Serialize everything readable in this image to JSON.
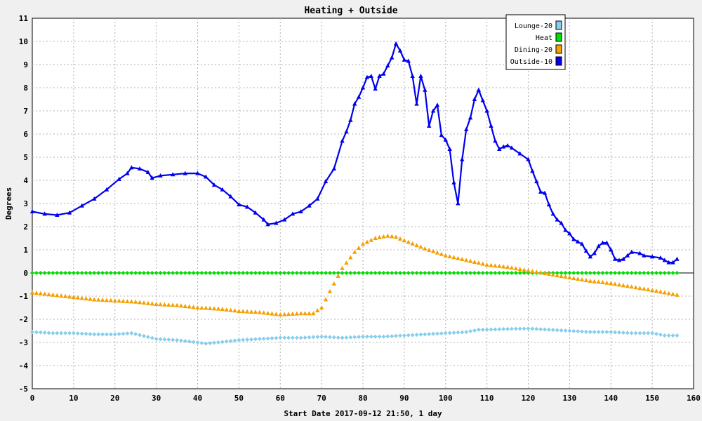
{
  "chart_data": {
    "type": "line",
    "title": "Heating + Outside",
    "xlabel": "Start Date 2017-09-12 21:50, 1 day",
    "ylabel": "Degrees",
    "xlim": [
      0,
      160
    ],
    "ylim": [
      -5,
      11
    ],
    "x_ticks": [
      0,
      10,
      20,
      30,
      40,
      50,
      60,
      70,
      80,
      90,
      100,
      110,
      120,
      130,
      140,
      150,
      160
    ],
    "y_ticks": [
      -5,
      -4,
      -3,
      -2,
      -1,
      0,
      1,
      2,
      3,
      4,
      5,
      6,
      7,
      8,
      9,
      10,
      11
    ],
    "grid": true,
    "legend_position": "top-right",
    "series": [
      {
        "name": "Lounge-20",
        "color": "#87ceeb",
        "marker": "diamond",
        "line": false,
        "points": [
          [
            0,
            -2.55
          ],
          [
            5,
            -2.6
          ],
          [
            10,
            -2.6
          ],
          [
            15,
            -2.65
          ],
          [
            20,
            -2.65
          ],
          [
            24,
            -2.6
          ],
          [
            30,
            -2.85
          ],
          [
            35,
            -2.9
          ],
          [
            40,
            -3.0
          ],
          [
            42,
            -3.05
          ],
          [
            45,
            -3.0
          ],
          [
            50,
            -2.9
          ],
          [
            55,
            -2.85
          ],
          [
            60,
            -2.8
          ],
          [
            65,
            -2.8
          ],
          [
            70,
            -2.75
          ],
          [
            75,
            -2.8
          ],
          [
            80,
            -2.75
          ],
          [
            85,
            -2.75
          ],
          [
            90,
            -2.7
          ],
          [
            95,
            -2.65
          ],
          [
            100,
            -2.6
          ],
          [
            105,
            -2.55
          ],
          [
            108,
            -2.45
          ],
          [
            110,
            -2.45
          ],
          [
            115,
            -2.42
          ],
          [
            120,
            -2.4
          ],
          [
            125,
            -2.45
          ],
          [
            130,
            -2.5
          ],
          [
            135,
            -2.55
          ],
          [
            140,
            -2.55
          ],
          [
            145,
            -2.6
          ],
          [
            150,
            -2.6
          ],
          [
            153,
            -2.7
          ],
          [
            156,
            -2.7
          ]
        ]
      },
      {
        "name": "Heat",
        "color": "#00dd00",
        "marker": "diamond",
        "line": false,
        "points": [
          [
            0,
            0
          ],
          [
            156,
            0
          ]
        ]
      },
      {
        "name": "Dining-20",
        "color": "#f5a000",
        "marker": "triangle",
        "line": false,
        "points": [
          [
            0,
            -0.85
          ],
          [
            5,
            -0.95
          ],
          [
            10,
            -1.05
          ],
          [
            15,
            -1.15
          ],
          [
            20,
            -1.2
          ],
          [
            25,
            -1.25
          ],
          [
            30,
            -1.35
          ],
          [
            35,
            -1.4
          ],
          [
            40,
            -1.5
          ],
          [
            45,
            -1.55
          ],
          [
            50,
            -1.65
          ],
          [
            55,
            -1.7
          ],
          [
            60,
            -1.8
          ],
          [
            65,
            -1.75
          ],
          [
            68,
            -1.75
          ],
          [
            70,
            -1.5
          ],
          [
            72,
            -0.8
          ],
          [
            75,
            0.2
          ],
          [
            78,
            0.9
          ],
          [
            80,
            1.25
          ],
          [
            83,
            1.5
          ],
          [
            86,
            1.6
          ],
          [
            88,
            1.55
          ],
          [
            90,
            1.4
          ],
          [
            95,
            1.05
          ],
          [
            100,
            0.75
          ],
          [
            105,
            0.55
          ],
          [
            110,
            0.35
          ],
          [
            115,
            0.25
          ],
          [
            120,
            0.1
          ],
          [
            125,
            -0.05
          ],
          [
            130,
            -0.2
          ],
          [
            135,
            -0.35
          ],
          [
            140,
            -0.45
          ],
          [
            145,
            -0.6
          ],
          [
            150,
            -0.75
          ],
          [
            153,
            -0.85
          ],
          [
            156,
            -0.95
          ]
        ]
      },
      {
        "name": "Outside-10",
        "color": "#0000ee",
        "marker": "triangle",
        "line": true,
        "points": [
          [
            0,
            2.65
          ],
          [
            3,
            2.55
          ],
          [
            6,
            2.5
          ],
          [
            9,
            2.6
          ],
          [
            12,
            2.9
          ],
          [
            15,
            3.2
          ],
          [
            18,
            3.6
          ],
          [
            21,
            4.05
          ],
          [
            23,
            4.3
          ],
          [
            24,
            4.55
          ],
          [
            26,
            4.5
          ],
          [
            28,
            4.35
          ],
          [
            29,
            4.1
          ],
          [
            31,
            4.2
          ],
          [
            34,
            4.25
          ],
          [
            37,
            4.3
          ],
          [
            40,
            4.3
          ],
          [
            42,
            4.15
          ],
          [
            44,
            3.8
          ],
          [
            46,
            3.6
          ],
          [
            48,
            3.3
          ],
          [
            50,
            2.95
          ],
          [
            52,
            2.85
          ],
          [
            54,
            2.6
          ],
          [
            56,
            2.3
          ],
          [
            57,
            2.1
          ],
          [
            59,
            2.15
          ],
          [
            61,
            2.3
          ],
          [
            63,
            2.55
          ],
          [
            65,
            2.65
          ],
          [
            67,
            2.9
          ],
          [
            69,
            3.2
          ],
          [
            71,
            3.95
          ],
          [
            73,
            4.5
          ],
          [
            75,
            5.7
          ],
          [
            76,
            6.1
          ],
          [
            77,
            6.6
          ],
          [
            78,
            7.3
          ],
          [
            79,
            7.6
          ],
          [
            80,
            8.0
          ],
          [
            81,
            8.45
          ],
          [
            82,
            8.5
          ],
          [
            83,
            7.95
          ],
          [
            84,
            8.5
          ],
          [
            85,
            8.6
          ],
          [
            86,
            8.95
          ],
          [
            87,
            9.3
          ],
          [
            88,
            9.9
          ],
          [
            89,
            9.6
          ],
          [
            90,
            9.2
          ],
          [
            91,
            9.15
          ],
          [
            92,
            8.5
          ],
          [
            93,
            7.3
          ],
          [
            94,
            8.5
          ],
          [
            95,
            7.9
          ],
          [
            96,
            6.35
          ],
          [
            97,
            7.0
          ],
          [
            98,
            7.25
          ],
          [
            99,
            5.95
          ],
          [
            100,
            5.75
          ],
          [
            101,
            5.35
          ],
          [
            102,
            3.9
          ],
          [
            103,
            3.0
          ],
          [
            104,
            4.9
          ],
          [
            105,
            6.2
          ],
          [
            106,
            6.7
          ],
          [
            107,
            7.5
          ],
          [
            108,
            7.9
          ],
          [
            109,
            7.45
          ],
          [
            110,
            7.0
          ],
          [
            111,
            6.35
          ],
          [
            112,
            5.7
          ],
          [
            113,
            5.35
          ],
          [
            114,
            5.45
          ],
          [
            115,
            5.5
          ],
          [
            116,
            5.4
          ],
          [
            118,
            5.15
          ],
          [
            120,
            4.9
          ],
          [
            121,
            4.4
          ],
          [
            122,
            3.95
          ],
          [
            123,
            3.5
          ],
          [
            124,
            3.45
          ],
          [
            125,
            2.95
          ],
          [
            126,
            2.55
          ],
          [
            127,
            2.3
          ],
          [
            128,
            2.15
          ],
          [
            129,
            1.85
          ],
          [
            130,
            1.7
          ],
          [
            131,
            1.45
          ],
          [
            132,
            1.35
          ],
          [
            133,
            1.25
          ],
          [
            134,
            0.95
          ],
          [
            135,
            0.7
          ],
          [
            136,
            0.85
          ],
          [
            137,
            1.15
          ],
          [
            138,
            1.3
          ],
          [
            139,
            1.3
          ],
          [
            140,
            1.0
          ],
          [
            141,
            0.6
          ],
          [
            142,
            0.55
          ],
          [
            143,
            0.6
          ],
          [
            144,
            0.75
          ],
          [
            145,
            0.9
          ],
          [
            147,
            0.85
          ],
          [
            148,
            0.75
          ],
          [
            150,
            0.7
          ],
          [
            152,
            0.65
          ],
          [
            153,
            0.55
          ],
          [
            154,
            0.45
          ],
          [
            155,
            0.45
          ],
          [
            156,
            0.6
          ]
        ]
      }
    ]
  }
}
